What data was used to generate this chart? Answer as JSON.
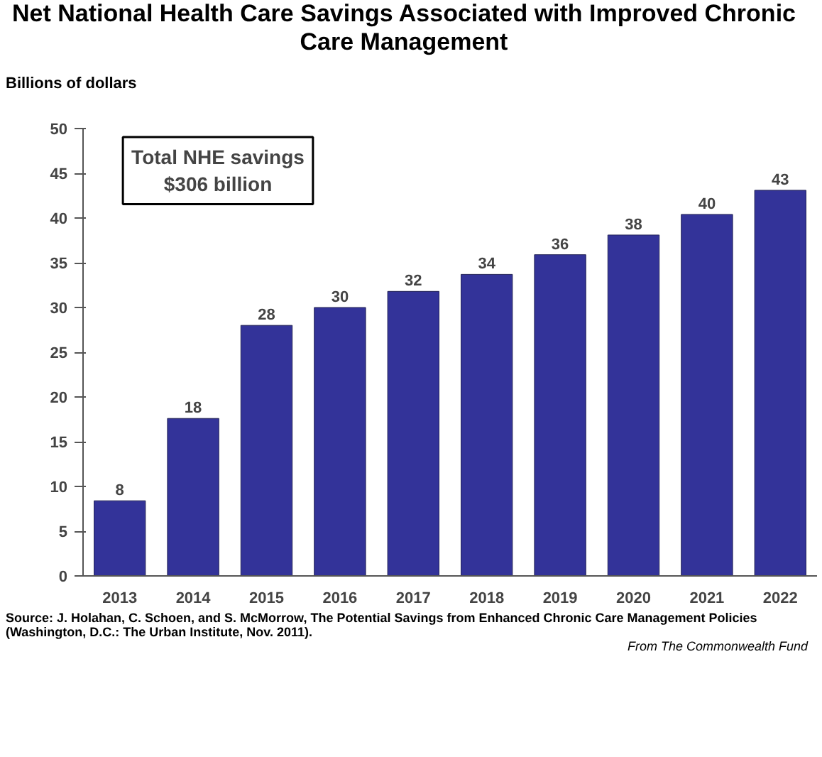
{
  "chart_data": {
    "type": "bar",
    "title": "Net National Health Care Savings Associated with Improved Chronic Care Management",
    "ylabel": "Billions of dollars",
    "categories": [
      "2013",
      "2014",
      "2015",
      "2016",
      "2017",
      "2018",
      "2019",
      "2020",
      "2021",
      "2022"
    ],
    "values": [
      8.4,
      17.6,
      28.0,
      30.0,
      31.8,
      33.7,
      35.9,
      38.1,
      40.4,
      43.1
    ],
    "value_labels": [
      "8",
      "18",
      "28",
      "30",
      "32",
      "34",
      "36",
      "38",
      "40",
      "43"
    ],
    "color": "#333399",
    "ylim": [
      0,
      50
    ],
    "yticks": [
      0,
      5,
      10,
      15,
      20,
      25,
      30,
      35,
      40,
      45,
      50
    ],
    "grid": false,
    "annotations": [
      "Total NHE savings\n$306 billion",
      "Source: J. Holahan, C. Schoen, and S. McMorrow, The Potential Savings from Enhanced Chronic Care Management Policies (Washington, D.C.: The Urban Institute, Nov. 2011).",
      "From The Commonwealth Fund"
    ]
  }
}
